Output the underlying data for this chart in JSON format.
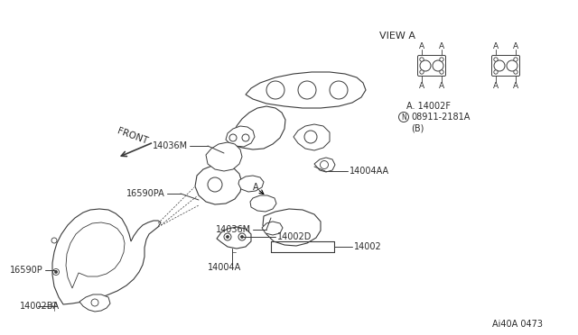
{
  "bg_color": "#ffffff",
  "line_color": "#3a3a3a",
  "text_color": "#2a2a2a",
  "fig_width": 6.4,
  "fig_height": 3.72,
  "dpi": 100,
  "labels": {
    "front": "FRONT",
    "view_a": "VIEW A",
    "l_14036M_top": "14036M",
    "l_14036M_bot": "14036M",
    "l_16590PA": "16590PA",
    "l_16590P": "16590P",
    "l_14004AA": "14004AA",
    "l_14002": "14002",
    "l_14002D": "14002D",
    "l_14004A": "14004A",
    "l_14002BA": "14002BA",
    "l_A_14002F": "A. 14002F",
    "l_N_08911": "08911-2181A",
    "l_B": "(B)",
    "l_A": "A",
    "diagram_code": "Ai40A 0473"
  }
}
